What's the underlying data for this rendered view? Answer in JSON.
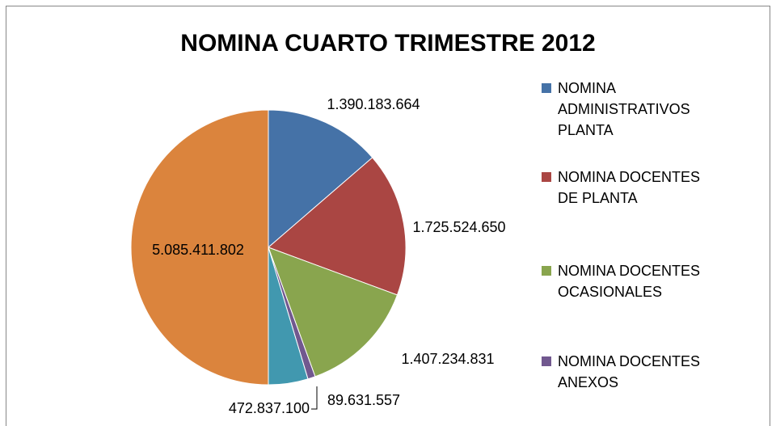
{
  "chart_data": {
    "type": "pie",
    "title": "NOMINA  CUARTO TRIMESTRE 2012",
    "categories": [
      "NOMINA ADMINISTRATIVOS PLANTA",
      "NOMINA DOCENTES DE PLANTA",
      "NOMINA DOCENTES OCASIONALES",
      "NOMINA DOCENTES ANEXOS",
      null,
      null
    ],
    "values": [
      1390183664,
      1725524650,
      1407234831,
      89631557,
      472837100,
      5085411802
    ],
    "value_labels": [
      "1.390.183.664",
      "1.725.524.650",
      "1.407.234.831",
      "89.631.557",
      "472.837.100",
      "5.085.411.802"
    ],
    "colors": [
      "#4572a7",
      "#aa4643",
      "#89a54e",
      "#71588f",
      "#4198af",
      "#db843d"
    ],
    "legend": "right"
  }
}
